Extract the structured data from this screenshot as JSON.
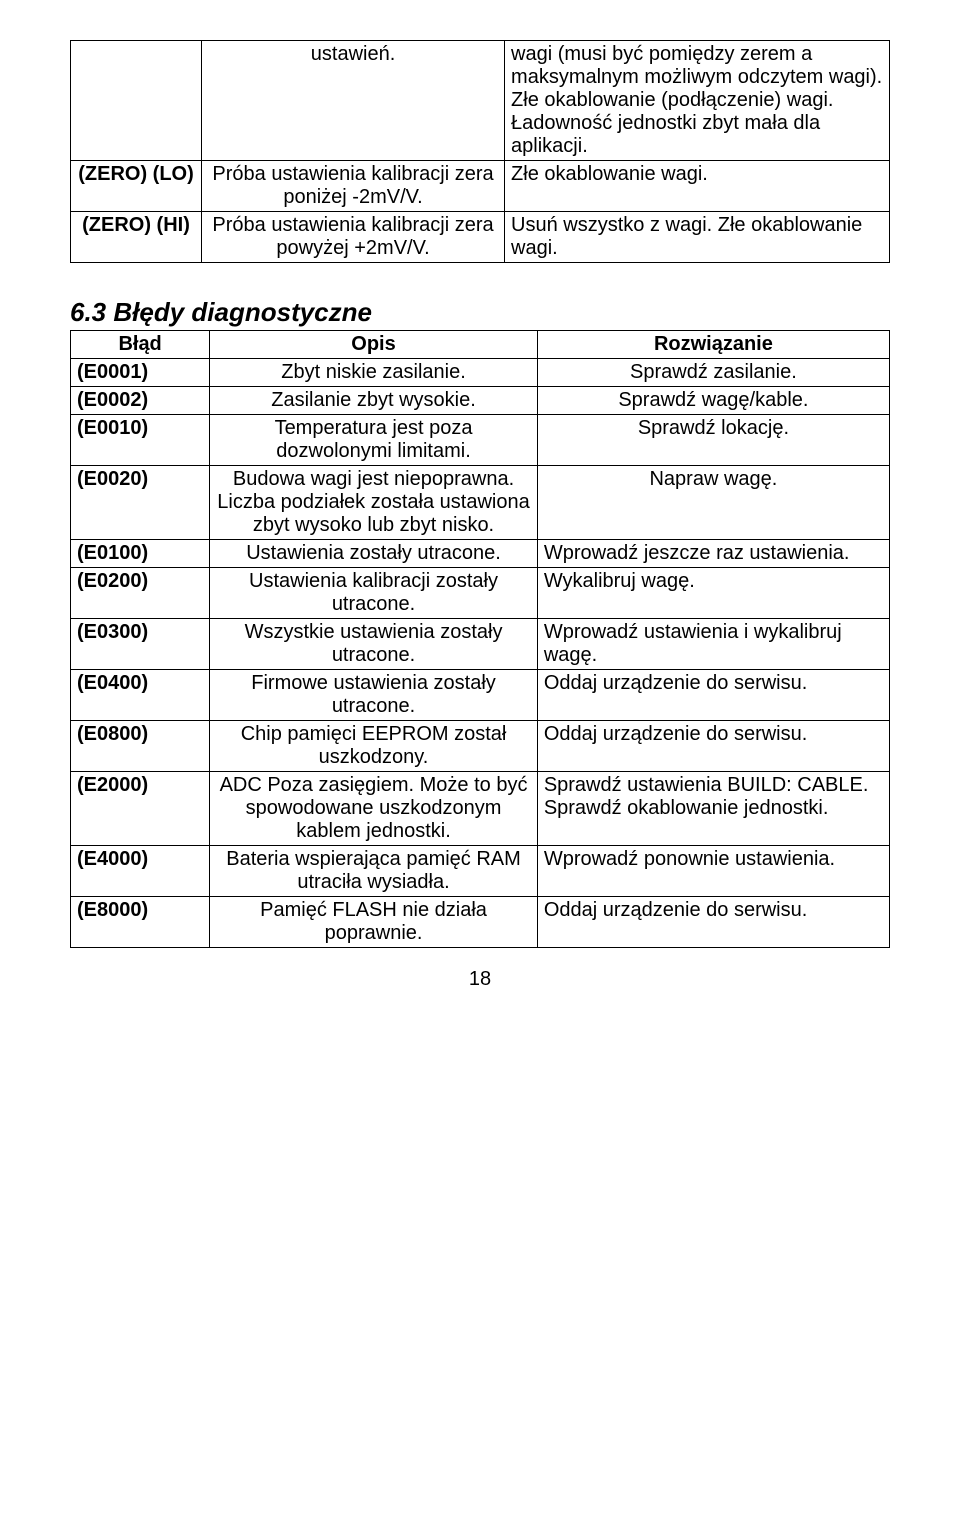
{
  "topTable": {
    "rows": [
      {
        "code": "",
        "desc": "ustawień.",
        "sol": "wagi (musi być pomiędzy zerem a maksymalnym możliwym odczytem wagi). Złe okablowanie (podłączenie) wagi. Ładowność jednostki zbyt mała dla aplikacji."
      },
      {
        "code": "(ZERO) (LO)",
        "desc": "Próba ustawienia kalibracji zera poniżej -2mV/V.",
        "sol": "Złe okablowanie wagi."
      },
      {
        "code": "(ZERO) (HI)",
        "desc": "Próba ustawienia kalibracji zera powyżej +2mV/V.",
        "sol": "Usuń wszystko z wagi. Złe okablowanie wagi."
      }
    ]
  },
  "sectionHeading": "6.3 Błędy diagnostyczne",
  "bottomTable": {
    "headers": {
      "c1": "Błąd",
      "c2": "Opis",
      "c3": "Rozwiązanie"
    },
    "rows": [
      {
        "code": "(E0001)",
        "desc": "Zbyt niskie zasilanie.",
        "sol": "Sprawdź zasilanie."
      },
      {
        "code": "(E0002)",
        "desc": "Zasilanie zbyt wysokie.",
        "sol": "Sprawdź wagę/kable."
      },
      {
        "code": "(E0010)",
        "desc": "Temperatura jest poza dozwolonymi limitami.",
        "sol": "Sprawdź lokację."
      },
      {
        "code": "(E0020)",
        "desc": "Budowa wagi jest niepoprawna. Liczba podziałek została ustawiona zbyt wysoko lub zbyt nisko.",
        "sol": "Napraw wagę."
      },
      {
        "code": "(E0100)",
        "desc": "Ustawienia zostały utracone.",
        "sol": "Wprowadź jeszcze raz ustawienia."
      },
      {
        "code": "(E0200)",
        "desc": "Ustawienia kalibracji zostały utracone.",
        "sol": "Wykalibruj wagę."
      },
      {
        "code": "(E0300)",
        "desc": "Wszystkie ustawienia zostały utracone.",
        "sol": "Wprowadź ustawienia i wykalibruj wagę."
      },
      {
        "code": "(E0400)",
        "desc": "Firmowe ustawienia zostały utracone.",
        "sol": "Oddaj urządzenie do serwisu."
      },
      {
        "code": "(E0800)",
        "desc": "Chip pamięci EEPROM został uszkodzony.",
        "sol": "Oddaj urządzenie do serwisu."
      },
      {
        "code": "(E2000)",
        "desc": "ADC Poza zasięgiem. Może to być spowodowane uszkodzonym kablem jednostki.",
        "sol": "Sprawdź ustawienia BUILD: CABLE. Sprawdź okablowanie jednostki."
      },
      {
        "code": "(E4000)",
        "desc": "Bateria wspierająca pamięć RAM utraciła wysiadła.",
        "sol": "Wprowadź ponownie ustawienia."
      },
      {
        "code": "(E8000)",
        "desc": "Pamięć FLASH nie działa poprawnie.",
        "sol": "Oddaj urządzenie do serwisu."
      }
    ]
  },
  "pageNumber": "18"
}
